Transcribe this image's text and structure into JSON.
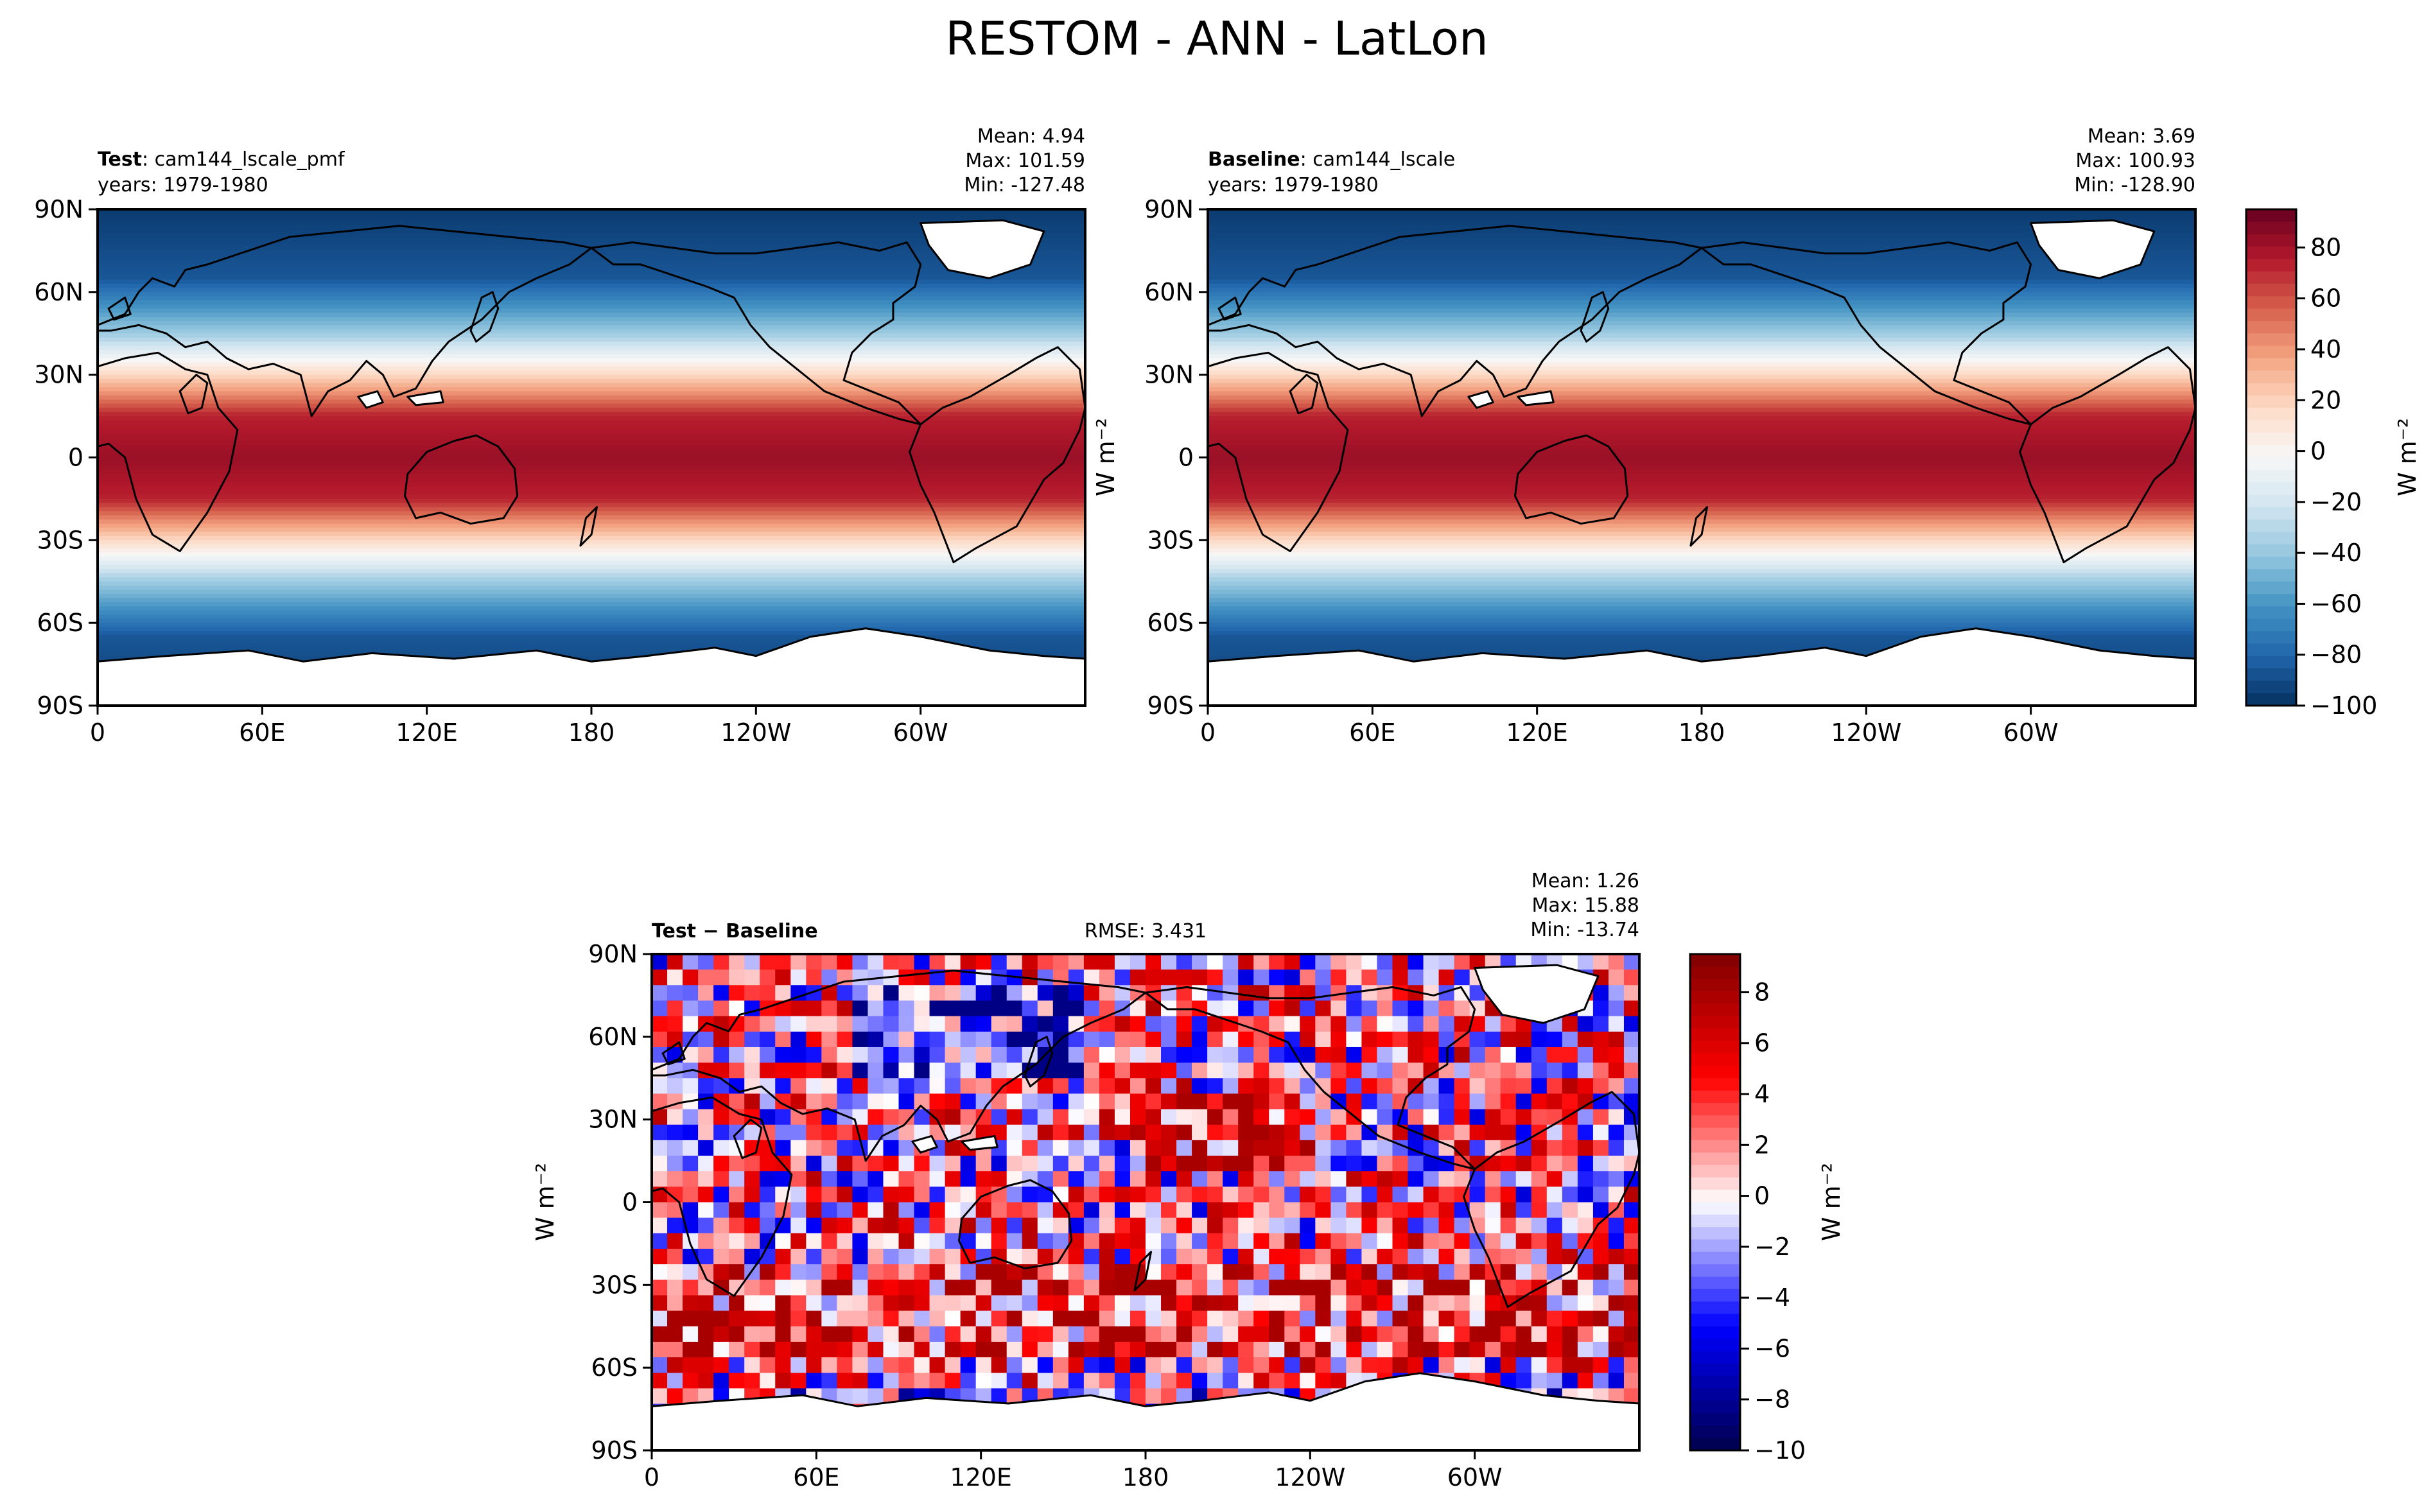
{
  "figure": {
    "suptitle": "RESTOM - ANN - LatLon"
  },
  "chart_data": [
    {
      "type": "heatmap",
      "panel": "test",
      "title_bold": "Test",
      "title_rest": ": cam144_lscale_pmf",
      "years": "years: 1979-1980",
      "stats": [
        "Mean:  4.94",
        "Max: 101.59",
        "Min: -127.48"
      ],
      "mean": 4.94,
      "max": 101.59,
      "min": -127.48,
      "field": "restom",
      "x_ticks": [
        "0",
        "60E",
        "120E",
        "180",
        "120W",
        "60W"
      ],
      "y_ticks": [
        "90N",
        "60N",
        "30N",
        "0",
        "30S",
        "60S",
        "90S"
      ],
      "xlim": [
        0,
        360
      ],
      "ylim": [
        -90,
        90
      ],
      "colormap": "RdBu_r"
    },
    {
      "type": "heatmap",
      "panel": "baseline",
      "title_bold": "Baseline",
      "title_rest": ": cam144_lscale",
      "years": "years: 1979-1980",
      "stats": [
        "Mean:  3.69",
        "Max: 100.93",
        "Min: -128.90"
      ],
      "mean": 3.69,
      "max": 100.93,
      "min": -128.9,
      "field": "restom",
      "x_ticks": [
        "0",
        "60E",
        "120E",
        "180",
        "120W",
        "60W"
      ],
      "y_ticks": [
        "90N",
        "60N",
        "30N",
        "0",
        "30S",
        "60S",
        "90S"
      ],
      "xlim": [
        0,
        360
      ],
      "ylim": [
        -90,
        90
      ],
      "colormap": "RdBu_r",
      "colorbar": {
        "ticks": [
          "80",
          "60",
          "40",
          "20",
          "0",
          "−20",
          "−40",
          "−60",
          "−80",
          "−100"
        ],
        "tick_values": [
          80,
          60,
          40,
          20,
          0,
          -20,
          -40,
          -60,
          -80,
          -100
        ],
        "range": [
          -100,
          95
        ],
        "label": "W m⁻²"
      },
      "ylabel": "W m⁻²"
    },
    {
      "type": "heatmap",
      "panel": "diff",
      "title_bold": "Test − Baseline",
      "rmse": "RMSE: 3.431",
      "stats": [
        "Mean:  1.26",
        "Max: 15.88",
        "Min: -13.74"
      ],
      "mean": 1.26,
      "max": 15.88,
      "min": -13.74,
      "field": "diff",
      "x_ticks": [
        "0",
        "60E",
        "120E",
        "180",
        "120W",
        "60W"
      ],
      "y_ticks": [
        "90N",
        "60N",
        "30N",
        "0",
        "30S",
        "60S",
        "90S"
      ],
      "xlim": [
        0,
        360
      ],
      "ylim": [
        -90,
        90
      ],
      "colormap": "seismic",
      "colorbar": {
        "ticks": [
          "8",
          "6",
          "4",
          "2",
          "0",
          "−2",
          "−4",
          "−6",
          "−8",
          "−10"
        ],
        "tick_values": [
          8,
          6,
          4,
          2,
          0,
          -2,
          -4,
          -6,
          -8,
          -10
        ],
        "range": [
          -10,
          9.5
        ],
        "label": "W m⁻²"
      },
      "ylabel": "W m⁻²"
    }
  ],
  "colors": {
    "rdbu": [
      "#053061",
      "#2166ac",
      "#4393c3",
      "#92c5de",
      "#d1e5f0",
      "#f7f7f7",
      "#fddbc7",
      "#f4a582",
      "#d6604d",
      "#b2182b",
      "#67001f"
    ],
    "seismic": [
      "#00004c",
      "#0000ff",
      "#ffffff",
      "#ff0000",
      "#7f0000"
    ],
    "land_outline": "#000000"
  }
}
